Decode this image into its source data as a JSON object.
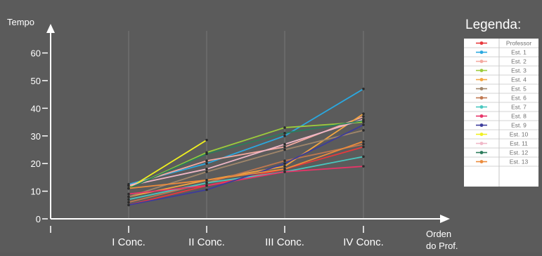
{
  "chart_data": {
    "type": "line",
    "ylabel": "Tempo",
    "xlabel_line1": "Orden",
    "xlabel_line2": "do Prof.",
    "categories": [
      "I Conc.",
      "II Conc.",
      "III Conc.",
      "IV Conc."
    ],
    "yticks": [
      "0",
      "10",
      "20",
      "30",
      "40",
      "50",
      "60"
    ],
    "ylim": [
      0,
      68
    ],
    "grid": "vertical",
    "legend_title": "Legenda:",
    "legend_position": "right",
    "series": [
      {
        "name": "Professor",
        "color": "#e8383c",
        "values": [
          5,
          12,
          18,
          26
        ]
      },
      {
        "name": "Est. 1",
        "color": "#2aa8e0",
        "values": [
          12.5,
          20,
          30,
          47
        ]
      },
      {
        "name": "Est. 2",
        "color": "#f4a9a0",
        "values": [
          12,
          21,
          26,
          37
        ]
      },
      {
        "name": "Est. 3",
        "color": "#9ccc3c",
        "values": [
          11,
          24,
          33,
          35
        ]
      },
      {
        "name": "Est. 4",
        "color": "#f4a640",
        "values": [
          8,
          14,
          19,
          38
        ]
      },
      {
        "name": "Est. 5",
        "color": "#a0866a",
        "values": [
          8,
          17,
          25,
          32
        ]
      },
      {
        "name": "Est. 6",
        "color": "#c07850",
        "values": [
          6,
          13,
          21,
          27
        ]
      },
      {
        "name": "Est. 7",
        "color": "#48c8c0",
        "values": [
          7,
          13,
          17,
          22.5
        ]
      },
      {
        "name": "Est. 8",
        "color": "#e83468",
        "values": [
          9,
          12,
          17,
          19
        ]
      },
      {
        "name": "Est. 9",
        "color": "#3c3c9c",
        "values": [
          5,
          10.5,
          20,
          34
        ]
      },
      {
        "name": "Est. 10",
        "color": "#f0f020",
        "values": [
          11,
          28.5,
          null,
          null
        ]
      },
      {
        "name": "Est. 11",
        "color": "#f0b8c8",
        "values": [
          12,
          18,
          27,
          36
        ]
      },
      {
        "name": "Est. 12",
        "color": "#2c7c5c",
        "values": [
          11,
          23.5,
          31,
          35.5
        ]
      },
      {
        "name": "Est. 13",
        "color": "#ec8c3c",
        "values": [
          11,
          14,
          18,
          28
        ]
      }
    ],
    "legend_labels": [
      "Professor",
      "Est. 1",
      "Est. 2",
      "Est. 3",
      "Est. 4",
      "Est. 5",
      "Est. 6",
      "Est. 7",
      "Est. 8",
      "Est. 9",
      "Est. 10",
      "Est. 11",
      "Est. 12",
      "Est. 13"
    ]
  }
}
